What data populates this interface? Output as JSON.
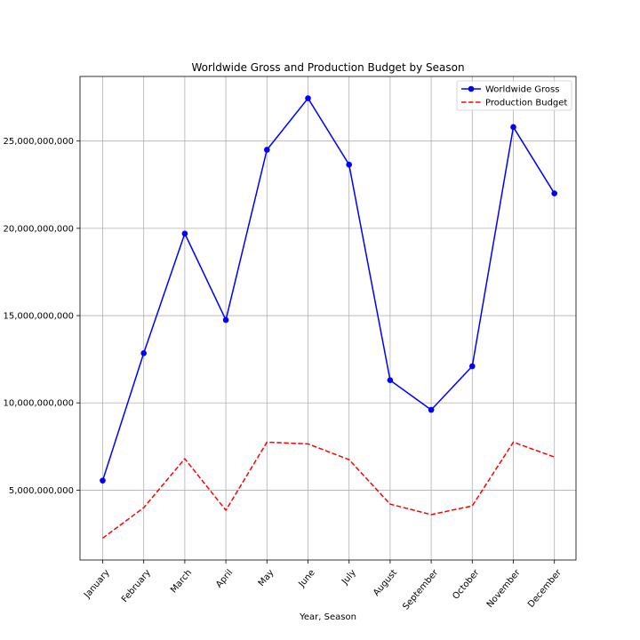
{
  "chart_data": {
    "type": "line",
    "title": "Worldwide Gross and Production Budget by Season",
    "xlabel": "Year, Season",
    "ylabel": "",
    "categories": [
      "January",
      "February",
      "March",
      "April",
      "May",
      "June",
      "July",
      "August",
      "September",
      "October",
      "November",
      "December"
    ],
    "series": [
      {
        "name": "Worldwide Gross",
        "color": "#0000ff",
        "line_style": "solid",
        "marker": "circle",
        "values": [
          5550000000,
          12850000000,
          19700000000,
          14750000000,
          24500000000,
          27450000000,
          23650000000,
          11300000000,
          9600000000,
          12100000000,
          25800000000,
          22000000000
        ]
      },
      {
        "name": "Production Budget",
        "color": "#ff0000",
        "line_style": "dashed",
        "marker": "none",
        "values": [
          2250000000,
          4000000000,
          6800000000,
          3850000000,
          7750000000,
          7650000000,
          6750000000,
          4200000000,
          3600000000,
          4100000000,
          7750000000,
          6900000000
        ]
      }
    ],
    "ylim": [
      1000000000,
      28700000000
    ],
    "yticks": [
      5000000000,
      10000000000,
      15000000000,
      20000000000,
      25000000000
    ],
    "ytick_labels": [
      "5,000,000,000",
      "10,000,000,000",
      "15,000,000,000",
      "20,000,000,000",
      "25,000,000,000"
    ],
    "grid": true,
    "legend_position": "top-right"
  }
}
